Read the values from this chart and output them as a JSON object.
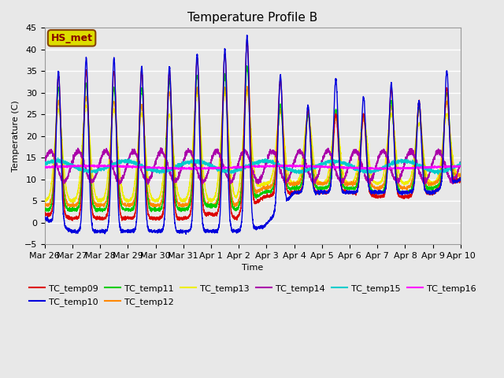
{
  "title": "Temperature Profile B",
  "xlabel": "Time",
  "ylabel": "Temperature (C)",
  "ylim": [
    -5,
    45
  ],
  "x_tick_labels": [
    "Mar 26",
    "Mar 27",
    "Mar 28",
    "Mar 29",
    "Mar 30",
    "Mar 31",
    "Apr 1",
    "Apr 2",
    "Apr 3",
    "Apr 4",
    "Apr 5",
    "Apr 6",
    "Apr 7",
    "Apr 8",
    "Apr 9",
    "Apr 10"
  ],
  "series_colors": {
    "TC_temp09": "#dd0000",
    "TC_temp10": "#0000dd",
    "TC_temp11": "#00cc00",
    "TC_temp12": "#ff8800",
    "TC_temp13": "#eeee00",
    "TC_temp14": "#aa00aa",
    "TC_temp15": "#00cccc",
    "TC_temp16": "#ff00ff"
  },
  "hs_met_box_facecolor": "#dddd00",
  "hs_met_box_edgecolor": "#884400",
  "hs_met_text_color": "#880000",
  "plot_bg_color": "#e8e8e8",
  "grid_color": "#ffffff",
  "title_fontsize": 11,
  "axis_label_fontsize": 8,
  "tick_fontsize": 8,
  "legend_fontsize": 8
}
